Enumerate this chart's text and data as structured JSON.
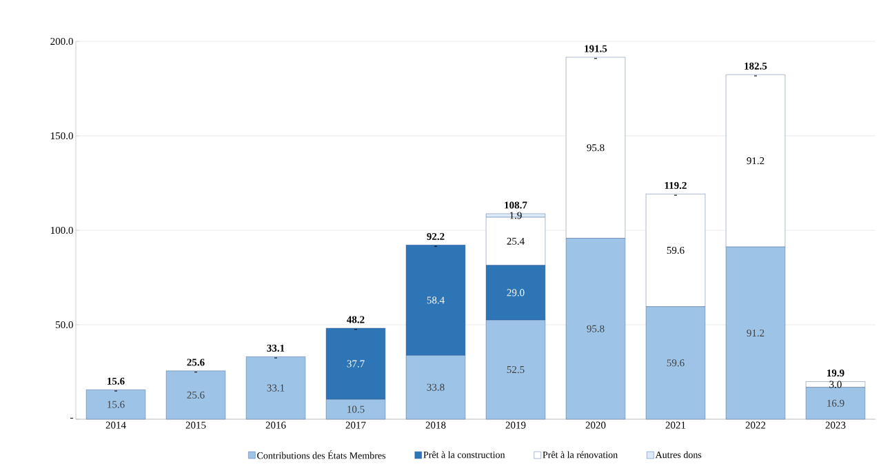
{
  "chart_data": {
    "type": "bar",
    "stacked": true,
    "categories": [
      "2014",
      "2015",
      "2016",
      "2017",
      "2018",
      "2019",
      "2020",
      "2021",
      "2022",
      "2023"
    ],
    "series": [
      {
        "name": "Contributions des États Membres",
        "color": "#9dc3e6",
        "values": [
          15.6,
          25.6,
          33.1,
          10.5,
          33.8,
          52.5,
          95.8,
          59.6,
          91.2,
          16.9
        ],
        "value_labels": [
          "15.6",
          "25.6",
          "33.1",
          "10.5",
          "33.8",
          "52.5",
          "95.8",
          "59.6",
          "91.2",
          "16.9"
        ]
      },
      {
        "name": "Prêt à la construction",
        "color": "#2e75b6",
        "values": [
          0,
          0,
          0,
          37.7,
          58.4,
          29.0,
          0,
          0,
          0,
          0
        ],
        "value_labels": [
          null,
          null,
          null,
          "37.7",
          "58.4",
          "29.0",
          null,
          null,
          null,
          null
        ]
      },
      {
        "name": "Prêt à la rénovation",
        "color": "#ffffff",
        "values": [
          0,
          0,
          0,
          0,
          0,
          25.4,
          95.8,
          59.6,
          91.2,
          3.0
        ],
        "value_labels": [
          null,
          null,
          null,
          null,
          null,
          "25.4",
          "95.8",
          "59.6",
          "91.2",
          "3.0"
        ]
      },
      {
        "name": "Autres dons",
        "color": "#ddebf7",
        "values": [
          0,
          0,
          0,
          0,
          0,
          1.9,
          0,
          0,
          0,
          0
        ],
        "value_labels": [
          "-",
          "-",
          "-",
          "-",
          "-",
          "1.9",
          "-",
          "-",
          "-",
          null
        ]
      }
    ],
    "totals": [
      "15.6",
      "25.6",
      "33.1",
      "48.2",
      "92.2",
      "108.7",
      "191.5",
      "119.2",
      "182.5",
      "19.9"
    ],
    "ylim": [
      0,
      200
    ],
    "yticks": [
      {
        "value": 0,
        "label": "-"
      },
      {
        "value": 50,
        "label": "50.0"
      },
      {
        "value": 100,
        "label": "100.0"
      },
      {
        "value": 150,
        "label": "150.0"
      },
      {
        "value": 200,
        "label": "200.0"
      }
    ],
    "grid": "y",
    "legend": "bottom"
  }
}
